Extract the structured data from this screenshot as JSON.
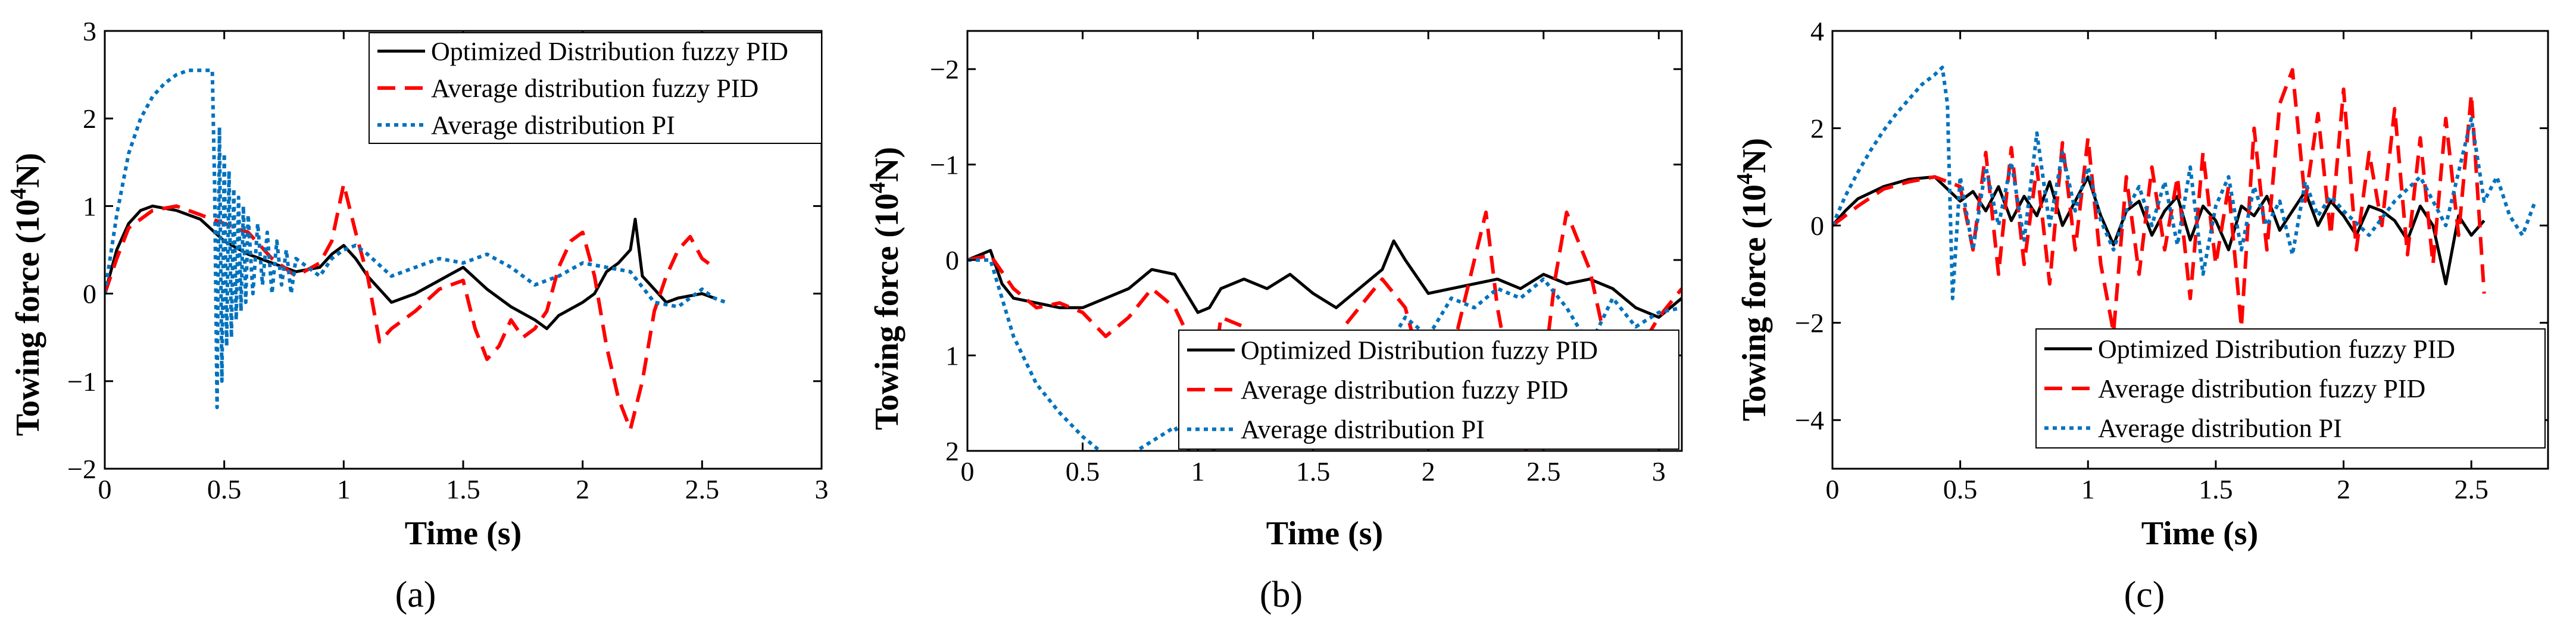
{
  "legend": [
    "Optimized Distribution fuzzy PID",
    "Average distribution fuzzy PID",
    "Average distribution PI"
  ],
  "series_colors": {
    "Optimized Distribution fuzzy PID": "#000000",
    "Average distribution fuzzy PID": "#ff0000",
    "Average distribution PI": "#0072bd"
  },
  "chart_data": [
    {
      "type": "line",
      "caption": "(a)",
      "xlabel": "Time  (s)",
      "ylabel_main": "Towing force  (10",
      "ylabel_sup": "4",
      "ylabel_end": "N)",
      "xlim": [
        0,
        3
      ],
      "ylim": [
        -2,
        3
      ],
      "xticks": [
        0,
        0.5,
        1,
        1.5,
        2,
        2.5,
        3
      ],
      "xtick_labels": [
        "0",
        "0.5",
        "1",
        "1.5",
        "2",
        "2.5",
        "3"
      ],
      "yticks": [
        -2,
        -1,
        0,
        1,
        2,
        3
      ],
      "ytick_labels": [
        "−2",
        "−1",
        "0",
        "1",
        "2",
        "3"
      ],
      "y_reversed": false,
      "legend_position": "top-right",
      "series": [
        {
          "name": "Optimized Distribution fuzzy PID",
          "x": [
            0,
            0.05,
            0.1,
            0.15,
            0.2,
            0.3,
            0.4,
            0.5,
            0.6,
            0.7,
            0.8,
            0.9,
            0.95,
            1.0,
            1.05,
            1.1,
            1.2,
            1.3,
            1.4,
            1.5,
            1.6,
            1.7,
            1.8,
            1.85,
            1.9,
            2.0,
            2.05,
            2.1,
            2.15,
            2.2,
            2.22,
            2.25,
            2.3,
            2.35,
            2.4,
            2.5,
            2.55
          ],
          "y": [
            0,
            0.5,
            0.8,
            0.95,
            1.0,
            0.95,
            0.85,
            0.6,
            0.45,
            0.35,
            0.25,
            0.3,
            0.45,
            0.55,
            0.4,
            0.2,
            -0.1,
            0.0,
            0.15,
            0.3,
            0.05,
            -0.15,
            -0.3,
            -0.4,
            -0.25,
            -0.1,
            0.0,
            0.25,
            0.35,
            0.5,
            0.85,
            0.2,
            0.05,
            -0.1,
            -0.05,
            0.0,
            -0.05
          ]
        },
        {
          "name": "Average distribution fuzzy PID",
          "x": [
            0,
            0.05,
            0.1,
            0.2,
            0.3,
            0.4,
            0.5,
            0.6,
            0.7,
            0.8,
            0.9,
            0.95,
            1.0,
            1.05,
            1.1,
            1.15,
            1.2,
            1.3,
            1.4,
            1.5,
            1.55,
            1.6,
            1.65,
            1.7,
            1.75,
            1.8,
            1.85,
            1.9,
            1.95,
            2.0,
            2.05,
            2.1,
            2.15,
            2.2,
            2.25,
            2.3,
            2.35,
            2.4,
            2.45,
            2.5,
            2.55
          ],
          "y": [
            0,
            0.4,
            0.75,
            0.95,
            1.0,
            0.9,
            0.8,
            0.7,
            0.4,
            0.2,
            0.35,
            0.6,
            1.25,
            0.7,
            0.2,
            -0.55,
            -0.4,
            -0.2,
            0.05,
            0.15,
            -0.4,
            -0.75,
            -0.6,
            -0.3,
            -0.5,
            -0.4,
            -0.2,
            0.3,
            0.6,
            0.7,
            0.2,
            -0.6,
            -1.2,
            -1.55,
            -1.0,
            -0.2,
            0.2,
            0.5,
            0.65,
            0.4,
            0.3
          ]
        },
        {
          "name": "Average distribution PI",
          "x": [
            0,
            0.05,
            0.1,
            0.15,
            0.2,
            0.25,
            0.3,
            0.35,
            0.4,
            0.45,
            0.46,
            0.47,
            0.48,
            0.49,
            0.5,
            0.51,
            0.52,
            0.53,
            0.54,
            0.55,
            0.56,
            0.57,
            0.58,
            0.59,
            0.6,
            0.62,
            0.64,
            0.66,
            0.68,
            0.7,
            0.72,
            0.74,
            0.76,
            0.78,
            0.8,
            0.85,
            0.9,
            0.95,
            1.0,
            1.05,
            1.1,
            1.2,
            1.3,
            1.4,
            1.5,
            1.6,
            1.7,
            1.8,
            1.9,
            2.0,
            2.1,
            2.2,
            2.3,
            2.4,
            2.5,
            2.55,
            2.6
          ],
          "y": [
            0,
            0.9,
            1.6,
            2.0,
            2.25,
            2.4,
            2.5,
            2.55,
            2.55,
            2.55,
            1.2,
            -1.3,
            1.9,
            -1.0,
            1.6,
            -0.6,
            1.4,
            -0.5,
            1.2,
            -0.3,
            1.1,
            -0.2,
            1.0,
            -0.1,
            0.9,
            0.0,
            0.8,
            0.1,
            0.7,
            0.0,
            0.6,
            0.1,
            0.5,
            0.0,
            0.4,
            0.3,
            0.2,
            0.4,
            0.5,
            0.55,
            0.45,
            0.2,
            0.3,
            0.4,
            0.35,
            0.45,
            0.3,
            0.1,
            0.2,
            0.35,
            0.3,
            0.25,
            -0.1,
            -0.15,
            0.05,
            -0.05,
            -0.1
          ]
        }
      ]
    },
    {
      "type": "line",
      "caption": "(b)",
      "xlabel": "Time  (s)",
      "ylabel_main": "Towing force  (10",
      "ylabel_sup": "4",
      "ylabel_end": "N)",
      "xlim": [
        0,
        3.1
      ],
      "ylim": [
        -2.4,
        2
      ],
      "xticks": [
        0,
        0.5,
        1,
        1.5,
        2,
        2.5,
        3
      ],
      "xtick_labels": [
        "0",
        "0.5",
        "1",
        "1.5",
        "2",
        "2.5",
        "3"
      ],
      "yticks": [
        -2,
        -1,
        0,
        1,
        2
      ],
      "ytick_labels": [
        "−2",
        "−1",
        "0",
        "1",
        "2"
      ],
      "y_reversed": true,
      "legend_position": "bottom-right",
      "series": [
        {
          "name": "Optimized Distribution fuzzy PID",
          "x": [
            0,
            0.05,
            0.1,
            0.15,
            0.2,
            0.3,
            0.4,
            0.5,
            0.6,
            0.7,
            0.8,
            0.9,
            1.0,
            1.05,
            1.1,
            1.2,
            1.3,
            1.4,
            1.5,
            1.6,
            1.7,
            1.8,
            1.85,
            1.9,
            2.0,
            2.1,
            2.2,
            2.3,
            2.4,
            2.5,
            2.6,
            2.7,
            2.8,
            2.9,
            3.0,
            3.1
          ],
          "y": [
            0,
            -0.05,
            -0.1,
            0.25,
            0.4,
            0.45,
            0.5,
            0.5,
            0.4,
            0.3,
            0.1,
            0.15,
            0.55,
            0.5,
            0.3,
            0.2,
            0.3,
            0.15,
            0.35,
            0.5,
            0.3,
            0.1,
            -0.2,
            0.0,
            0.35,
            0.3,
            0.25,
            0.2,
            0.3,
            0.15,
            0.25,
            0.2,
            0.3,
            0.5,
            0.6,
            0.4
          ]
        },
        {
          "name": "Average distribution fuzzy PID",
          "x": [
            0,
            0.1,
            0.2,
            0.3,
            0.4,
            0.5,
            0.6,
            0.7,
            0.8,
            0.9,
            1.0,
            1.05,
            1.1,
            1.2,
            1.3,
            1.4,
            1.5,
            1.6,
            1.7,
            1.8,
            1.9,
            2.0,
            2.05,
            2.1,
            2.2,
            2.25,
            2.3,
            2.4,
            2.45,
            2.5,
            2.55,
            2.6,
            2.7,
            2.8,
            2.85,
            2.9,
            3.0,
            3.1
          ],
          "y": [
            0,
            -0.05,
            0.3,
            0.5,
            0.45,
            0.55,
            0.8,
            0.6,
            0.3,
            0.5,
            1.0,
            1.5,
            0.6,
            0.7,
            0.9,
            1.2,
            1.05,
            0.8,
            0.5,
            0.2,
            0.5,
            1.4,
            1.5,
            1.0,
            0.0,
            -0.5,
            0.5,
            1.8,
            2.2,
            1.2,
            0.2,
            -0.5,
            0.1,
            1.2,
            1.6,
            1.0,
            0.6,
            0.3
          ]
        },
        {
          "name": "Average distribution PI",
          "x": [
            0,
            0.1,
            0.15,
            0.2,
            0.3,
            0.4,
            0.5,
            0.6,
            0.7,
            0.8,
            0.9,
            1.0,
            1.05,
            1.1,
            1.2,
            1.3,
            1.4,
            1.5,
            1.6,
            1.7,
            1.8,
            1.9,
            2.0,
            2.1,
            2.2,
            2.3,
            2.4,
            2.5,
            2.6,
            2.7,
            2.8,
            2.9,
            3.0,
            3.1
          ],
          "y": [
            0,
            0.0,
            0.4,
            0.8,
            1.3,
            1.6,
            1.85,
            2.05,
            2.05,
            1.9,
            1.75,
            2.15,
            2.1,
            1.8,
            1.6,
            1.35,
            1.45,
            1.25,
            1.5,
            1.4,
            1.0,
            0.6,
            0.8,
            0.4,
            0.5,
            0.3,
            0.4,
            0.2,
            0.5,
            0.9,
            0.4,
            0.7,
            0.55,
            0.5
          ]
        }
      ]
    },
    {
      "type": "line",
      "caption": "(c)",
      "xlabel": "Time  (s)",
      "ylabel_main": "Towing force  (10",
      "ylabel_sup": "4",
      "ylabel_end": "N)",
      "xlim": [
        0,
        2.8
      ],
      "ylim": [
        -5,
        4
      ],
      "xticks": [
        0,
        0.5,
        1,
        1.5,
        2,
        2.5
      ],
      "xtick_labels": [
        "0",
        "0.5",
        "1",
        "1.5",
        "2",
        "2.5"
      ],
      "yticks": [
        -4,
        -2,
        0,
        2,
        4
      ],
      "ytick_labels": [
        "−4",
        "−2",
        "0",
        "2",
        "4"
      ],
      "y_reversed": false,
      "legend_position": "bottom-right",
      "series": [
        {
          "name": "Optimized Distribution fuzzy PID",
          "x": [
            0,
            0.05,
            0.1,
            0.2,
            0.3,
            0.4,
            0.5,
            0.55,
            0.6,
            0.65,
            0.7,
            0.75,
            0.8,
            0.85,
            0.9,
            0.95,
            1.0,
            1.05,
            1.1,
            1.15,
            1.2,
            1.25,
            1.3,
            1.35,
            1.4,
            1.45,
            1.5,
            1.55,
            1.6,
            1.65,
            1.7,
            1.75,
            1.8,
            1.85,
            1.9,
            1.95,
            2.0,
            2.05,
            2.1,
            2.15,
            2.2,
            2.25,
            2.3,
            2.35,
            2.4,
            2.45,
            2.5,
            2.55
          ],
          "y": [
            0,
            0.3,
            0.55,
            0.8,
            0.95,
            1.0,
            0.5,
            0.7,
            0.3,
            0.8,
            0.1,
            0.6,
            0.2,
            0.9,
            0.0,
            0.5,
            1.0,
            0.2,
            -0.4,
            0.3,
            0.5,
            -0.2,
            0.3,
            0.6,
            -0.3,
            0.4,
            0.1,
            -0.5,
            0.4,
            0.2,
            0.6,
            -0.1,
            0.3,
            0.7,
            0.0,
            0.5,
            0.2,
            -0.2,
            0.4,
            0.3,
            0.1,
            -0.3,
            0.4,
            0.0,
            -1.2,
            0.2,
            -0.2,
            0.1
          ]
        },
        {
          "name": "Average distribution fuzzy PID",
          "x": [
            0,
            0.1,
            0.2,
            0.3,
            0.4,
            0.5,
            0.55,
            0.6,
            0.65,
            0.7,
            0.75,
            0.8,
            0.85,
            0.9,
            0.95,
            1.0,
            1.05,
            1.1,
            1.15,
            1.2,
            1.25,
            1.3,
            1.35,
            1.4,
            1.45,
            1.5,
            1.55,
            1.6,
            1.65,
            1.7,
            1.75,
            1.8,
            1.85,
            1.9,
            1.95,
            2.0,
            2.05,
            2.1,
            2.15,
            2.2,
            2.25,
            2.3,
            2.35,
            2.4,
            2.45,
            2.5,
            2.55
          ],
          "y": [
            0,
            0.4,
            0.75,
            0.9,
            1.0,
            0.8,
            -0.5,
            1.5,
            -1.0,
            1.6,
            -0.8,
            1.2,
            -1.2,
            1.7,
            -0.5,
            1.8,
            -0.8,
            -2.2,
            1.0,
            -1.0,
            1.2,
            -0.5,
            1.0,
            -1.5,
            1.5,
            -0.8,
            0.8,
            -2.1,
            2.0,
            -0.5,
            2.5,
            3.2,
            0.5,
            2.3,
            -0.2,
            2.8,
            -0.5,
            1.5,
            0.0,
            2.4,
            -0.6,
            1.8,
            -0.8,
            2.2,
            -0.2,
            2.7,
            -1.4
          ]
        },
        {
          "name": "Average distribution PI",
          "x": [
            0,
            0.05,
            0.1,
            0.15,
            0.2,
            0.25,
            0.3,
            0.35,
            0.4,
            0.43,
            0.45,
            0.47,
            0.5,
            0.55,
            0.6,
            0.65,
            0.7,
            0.75,
            0.8,
            0.85,
            0.9,
            0.95,
            1.0,
            1.05,
            1.1,
            1.15,
            1.2,
            1.25,
            1.3,
            1.35,
            1.4,
            1.45,
            1.5,
            1.55,
            1.6,
            1.65,
            1.7,
            1.75,
            1.8,
            1.85,
            1.9,
            1.95,
            2.0,
            2.1,
            2.2,
            2.3,
            2.4,
            2.5,
            2.55,
            2.6,
            2.65,
            2.7,
            2.75
          ],
          "y": [
            0,
            0.6,
            1.1,
            1.55,
            1.95,
            2.3,
            2.6,
            2.9,
            3.1,
            3.25,
            2.5,
            -1.5,
            1.0,
            -0.5,
            1.2,
            0.0,
            1.3,
            -0.3,
            1.9,
            0.0,
            1.5,
            0.3,
            1.2,
            0.1,
            -0.5,
            0.3,
            0.8,
            0.0,
            0.9,
            -0.4,
            1.2,
            -1.0,
            0.4,
            1.0,
            -0.5,
            0.8,
            0.0,
            0.5,
            -0.6,
            0.9,
            0.2,
            0.6,
            0.3,
            -0.2,
            0.5,
            1.0,
            0.0,
            2.2,
            0.5,
            1.0,
            0.2,
            -0.2,
            0.5
          ]
        }
      ]
    }
  ]
}
